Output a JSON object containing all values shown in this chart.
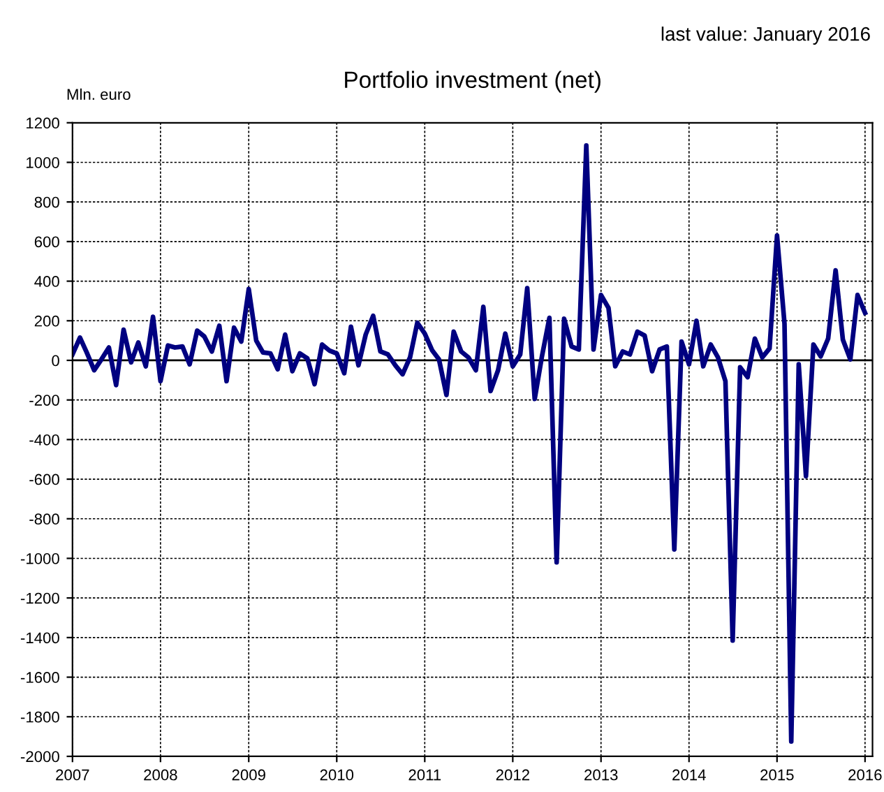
{
  "chart_data": {
    "type": "line",
    "title": "Portfolio investment (net)",
    "ylabel": "Mln. euro",
    "annotations": [
      "last value: January 2016"
    ],
    "x": [
      "2007-01",
      "2007-02",
      "2007-03",
      "2007-04",
      "2007-05",
      "2007-06",
      "2007-07",
      "2007-08",
      "2007-09",
      "2007-10",
      "2007-11",
      "2007-12",
      "2008-01",
      "2008-02",
      "2008-03",
      "2008-04",
      "2008-05",
      "2008-06",
      "2008-07",
      "2008-08",
      "2008-09",
      "2008-10",
      "2008-11",
      "2008-12",
      "2009-01",
      "2009-02",
      "2009-03",
      "2009-04",
      "2009-05",
      "2009-06",
      "2009-07",
      "2009-08",
      "2009-09",
      "2009-10",
      "2009-11",
      "2009-12",
      "2010-01",
      "2010-02",
      "2010-03",
      "2010-04",
      "2010-05",
      "2010-06",
      "2010-07",
      "2010-08",
      "2010-09",
      "2010-10",
      "2010-11",
      "2010-12",
      "2011-01",
      "2011-02",
      "2011-03",
      "2011-04",
      "2011-05",
      "2011-06",
      "2011-07",
      "2011-08",
      "2011-09",
      "2011-10",
      "2011-11",
      "2011-12",
      "2012-01",
      "2012-02",
      "2012-03",
      "2012-04",
      "2012-05",
      "2012-06",
      "2012-07",
      "2012-08",
      "2012-09",
      "2012-10",
      "2012-11",
      "2012-12",
      "2013-01",
      "2013-02",
      "2013-03",
      "2013-04",
      "2013-05",
      "2013-06",
      "2013-07",
      "2013-08",
      "2013-09",
      "2013-10",
      "2013-11",
      "2013-12",
      "2014-01",
      "2014-02",
      "2014-03",
      "2014-04",
      "2014-05",
      "2014-06",
      "2014-07",
      "2014-08",
      "2014-09",
      "2014-10",
      "2014-11",
      "2014-12",
      "2015-01",
      "2015-02",
      "2015-03",
      "2015-04",
      "2015-05",
      "2015-06",
      "2015-07",
      "2015-08",
      "2015-09",
      "2015-10",
      "2015-11",
      "2015-12",
      "2016-01"
    ],
    "series": [
      {
        "color": "#000080",
        "values": [
          30,
          115,
          40,
          -50,
          5,
          65,
          -125,
          155,
          -10,
          90,
          -30,
          220,
          -105,
          75,
          65,
          70,
          -20,
          150,
          120,
          45,
          175,
          -105,
          165,
          95,
          360,
          100,
          40,
          35,
          -45,
          130,
          -55,
          35,
          10,
          -120,
          80,
          50,
          35,
          -65,
          170,
          -25,
          130,
          225,
          45,
          30,
          -25,
          -70,
          15,
          190,
          135,
          50,
          5,
          -175,
          145,
          45,
          15,
          -50,
          270,
          -155,
          -50,
          135,
          -30,
          30,
          365,
          -195,
          20,
          215,
          -1020,
          210,
          70,
          55,
          1085,
          55,
          330,
          265,
          -30,
          45,
          30,
          145,
          125,
          -55,
          55,
          70,
          -955,
          95,
          -20,
          200,
          -30,
          80,
          15,
          -105,
          -1415,
          -35,
          -85,
          110,
          15,
          60,
          630,
          185,
          -1925,
          -20,
          -585,
          80,
          20,
          110,
          455,
          105,
          5,
          330,
          240
        ]
      }
    ],
    "xlim": [
      "2007-01",
      "2016-02"
    ],
    "xticks": [
      {
        "value": "2007",
        "label": "2007"
      },
      {
        "value": "2008",
        "label": "2008"
      },
      {
        "value": "2009",
        "label": "2009"
      },
      {
        "value": "2010",
        "label": "2010"
      },
      {
        "value": "2011",
        "label": "2011"
      },
      {
        "value": "2012",
        "label": "2012"
      },
      {
        "value": "2013",
        "label": "2013"
      },
      {
        "value": "2014",
        "label": "2014"
      },
      {
        "value": "2015",
        "label": "2015"
      },
      {
        "value": "2016",
        "label": "2016"
      }
    ],
    "ylim": [
      -2000,
      1200
    ],
    "yticks": [
      -2000,
      -1800,
      -1600,
      -1400,
      -1200,
      -1000,
      -800,
      -600,
      -400,
      -200,
      0,
      200,
      400,
      600,
      800,
      1000,
      1200
    ],
    "ref_lines": [
      {
        "axis": "y",
        "value": 0,
        "color": "#000000",
        "line_style": "solid"
      }
    ],
    "grid": true,
    "legend": false,
    "marker": "none",
    "line_style": "solid"
  }
}
